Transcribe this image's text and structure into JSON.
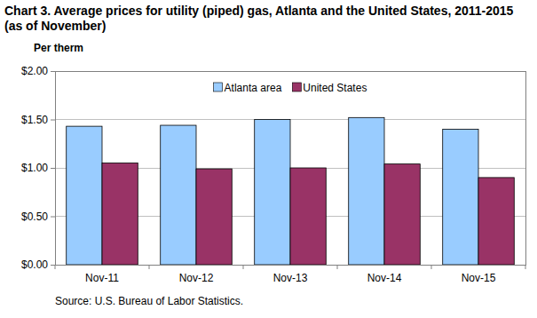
{
  "chart_data": {
    "type": "bar",
    "title": "Chart 3.  Average prices for utility (piped) gas, Atlanta and the United States, 2011-2015 (as of November)",
    "y_label": "Per therm",
    "source": "Source: U.S. Bureau of Labor Statistics.",
    "categories": [
      "Nov-11",
      "Nov-12",
      "Nov-13",
      "Nov-14",
      "Nov-15"
    ],
    "series": [
      {
        "name": "Atlanta area",
        "color": "#99ccff",
        "values": [
          1.43,
          1.44,
          1.5,
          1.52,
          1.4
        ]
      },
      {
        "name": "United States",
        "color": "#993366",
        "values": [
          1.05,
          0.99,
          1.0,
          1.04,
          0.9
        ]
      }
    ],
    "ylim": [
      0,
      2
    ],
    "yticks": [
      {
        "value": 0,
        "label": "$0.00"
      },
      {
        "value": 0.5,
        "label": "$0.50"
      },
      {
        "value": 1,
        "label": "$1.00"
      },
      {
        "value": 1.5,
        "label": "$1.50"
      },
      {
        "value": 2,
        "label": "$2.00"
      }
    ],
    "grid": true,
    "legend": "top"
  }
}
